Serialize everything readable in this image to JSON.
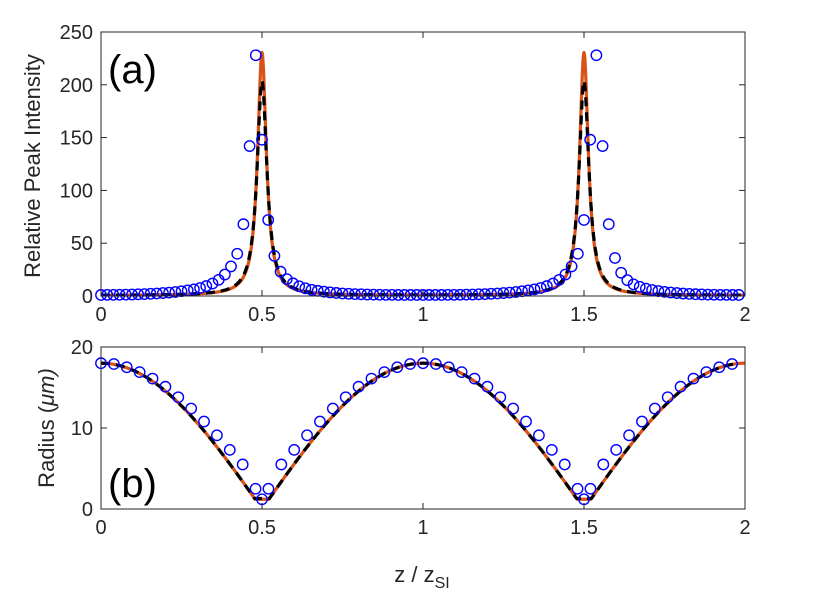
{
  "figure": {
    "xlabel_main": "z / z",
    "xlabel_sub": "SI",
    "colors": {
      "orange": "#D95319",
      "black": "#000000",
      "blue": "#0000FF",
      "axis": "#262626"
    }
  },
  "chart_data": [
    {
      "type": "line",
      "panel_label": "(a)",
      "ylabel": "Relative Peak Intensity",
      "xlim": [
        0,
        2
      ],
      "ylim": [
        0,
        250
      ],
      "xticks": [
        0,
        0.5,
        1,
        1.5,
        2
      ],
      "xtick_labels": [
        "0",
        "0.5",
        "1",
        "1.5",
        "2"
      ],
      "yticks": [
        0,
        50,
        100,
        150,
        200,
        250
      ],
      "ytick_labels": [
        "0",
        "50",
        "100",
        "150",
        "200",
        "250"
      ],
      "series": [
        {
          "name": "solid (orange)",
          "style": "solid",
          "color": "#D95319",
          "model": "lorentzian_peaks",
          "peak_positions": [
            0.5,
            1.5
          ],
          "peak_height": 230,
          "half_width": 0.0165,
          "baseline": 0.5
        },
        {
          "name": "dashed (black)",
          "style": "dashed",
          "color": "#000000",
          "model": "lorentzian_peaks",
          "peak_positions": [
            0.5,
            1.5
          ],
          "peak_height": 203,
          "half_width": 0.0185,
          "baseline": 0.5
        },
        {
          "name": "circles (blue)",
          "style": "markers",
          "color": "#0000FF",
          "x": [
            0.0,
            0.0192,
            0.0385,
            0.0577,
            0.0769,
            0.0962,
            0.1154,
            0.1346,
            0.1538,
            0.1731,
            0.1923,
            0.2115,
            0.2308,
            0.25,
            0.2692,
            0.2885,
            0.3077,
            0.3269,
            0.3462,
            0.3654,
            0.3846,
            0.4038,
            0.4231,
            0.4423,
            0.4615,
            0.4808,
            0.5,
            0.5192,
            0.5385,
            0.5577,
            0.5769,
            0.5962,
            0.6154,
            0.6346,
            0.6538,
            0.6731,
            0.6923,
            0.7115,
            0.7308,
            0.75,
            0.7692,
            0.7885,
            0.8077,
            0.8269,
            0.8462,
            0.8654,
            0.8846,
            0.9038,
            0.9231,
            0.9423,
            0.9615,
            0.9808,
            1.0,
            1.0192,
            1.0385,
            1.0577,
            1.0769,
            1.0962,
            1.1154,
            1.1346,
            1.1538,
            1.1731,
            1.1923,
            1.2115,
            1.2308,
            1.25,
            1.2692,
            1.2885,
            1.3077,
            1.3269,
            1.3462,
            1.3654,
            1.3846,
            1.4038,
            1.4231,
            1.4423,
            1.4615,
            1.4808,
            1.5,
            1.5192,
            1.5385,
            1.5577,
            1.5769,
            1.5962,
            1.6154,
            1.6346,
            1.6538,
            1.6731,
            1.6923,
            1.7115,
            1.7308,
            1.75,
            1.7692,
            1.7885,
            1.8077,
            1.8269,
            1.8462,
            1.8654,
            1.8846,
            1.9038,
            1.9231,
            1.9423,
            1.9615,
            1.9808
          ],
          "values": [
            1.0,
            1.1,
            1.1,
            1.2,
            1.3,
            1.4,
            1.6,
            1.8,
            2.1,
            2.4,
            2.8,
            3.2,
            3.8,
            4.5,
            5.3,
            6.3,
            7.6,
            9.4,
            11.8,
            15.3,
            20.3,
            28.0,
            40.0,
            68.0,
            142.0,
            228.0,
            148.0,
            72.0,
            38.0,
            23.0,
            16.0,
            12.0,
            9.2,
            7.3,
            5.9,
            4.9,
            4.1,
            3.4,
            2.9,
            2.4,
            2.1,
            1.8,
            1.6,
            1.4,
            1.3,
            1.2,
            1.1,
            1.1,
            1.0,
            1.0,
            1.0,
            1.0,
            1.0,
            1.0,
            1.0,
            1.0,
            1.1,
            1.1,
            1.2,
            1.3,
            1.4,
            1.6,
            1.8,
            2.1,
            2.4,
            2.8,
            3.2,
            3.8,
            4.5,
            5.3,
            6.3,
            7.6,
            9.4,
            11.8,
            15.3,
            20.3,
            28.0,
            40.0,
            72.0,
            148.0,
            228.0,
            142.0,
            68.0,
            36.0,
            22.0,
            15.0,
            11.0,
            8.7,
            7.0,
            5.7,
            4.7,
            3.9,
            3.3,
            2.8,
            2.3,
            2.0,
            1.7,
            1.5,
            1.3,
            1.2,
            1.1,
            1.1,
            1.0,
            1.0
          ]
        }
      ]
    },
    {
      "type": "line",
      "panel_label": "(b)",
      "ylabel_main": "Radius (",
      "ylabel_unit": "μm)",
      "xlim": [
        0,
        2
      ],
      "ylim": [
        0,
        20
      ],
      "xticks": [
        0,
        0.5,
        1,
        1.5,
        2
      ],
      "xtick_labels": [
        "0",
        "0.5",
        "1",
        "1.5",
        "2"
      ],
      "yticks": [
        0,
        10,
        20
      ],
      "ytick_labels": [
        "0",
        "10",
        "20"
      ],
      "series": [
        {
          "name": "solid (orange)",
          "style": "solid",
          "color": "#D95319",
          "model": "abs_cos",
          "amplitude": 18.0,
          "min_value": 1.2,
          "x_end": 2.0
        },
        {
          "name": "dashed (black)",
          "style": "dashed",
          "color": "#000000",
          "model": "abs_cos",
          "amplitude": 18.0,
          "min_value": 1.3,
          "x_end": 1.98
        },
        {
          "name": "circles (blue)",
          "style": "markers",
          "color": "#0000FF",
          "x": [
            0.0,
            0.04,
            0.08,
            0.12,
            0.16,
            0.2,
            0.24,
            0.28,
            0.32,
            0.36,
            0.4,
            0.44,
            0.48,
            0.5,
            0.52,
            0.56,
            0.6,
            0.64,
            0.68,
            0.72,
            0.76,
            0.8,
            0.84,
            0.88,
            0.92,
            0.96,
            1.0,
            1.04,
            1.08,
            1.12,
            1.16,
            1.2,
            1.24,
            1.28,
            1.32,
            1.36,
            1.4,
            1.44,
            1.48,
            1.5,
            1.52,
            1.56,
            1.6,
            1.64,
            1.68,
            1.72,
            1.76,
            1.8,
            1.84,
            1.88,
            1.92,
            1.96
          ],
          "values": [
            18.0,
            17.9,
            17.5,
            16.9,
            16.1,
            15.1,
            13.8,
            12.4,
            10.8,
            9.1,
            7.3,
            5.5,
            2.5,
            1.2,
            2.5,
            5.5,
            7.3,
            9.1,
            10.8,
            12.4,
            13.8,
            15.1,
            16.1,
            16.9,
            17.5,
            17.9,
            18.0,
            17.9,
            17.5,
            16.9,
            16.1,
            15.1,
            13.8,
            12.4,
            10.8,
            9.1,
            7.3,
            5.5,
            2.5,
            1.2,
            2.5,
            5.5,
            7.3,
            9.1,
            10.8,
            12.4,
            13.8,
            15.1,
            16.1,
            16.9,
            17.5,
            17.9
          ]
        }
      ]
    }
  ]
}
